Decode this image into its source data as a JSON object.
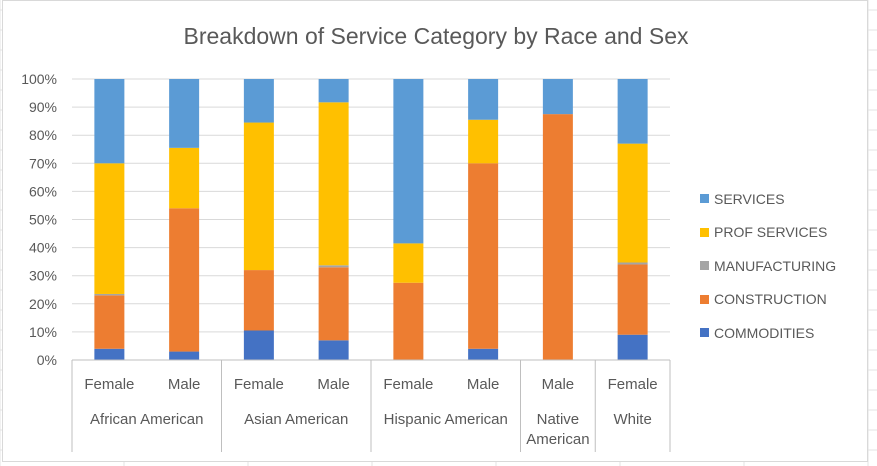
{
  "chart_data": {
    "type": "bar",
    "stacked": true,
    "percent": true,
    "title": "Breakdown of Service Category by Race and Sex",
    "ylim": [
      0,
      100
    ],
    "y_ticks": [
      "0%",
      "10%",
      "20%",
      "30%",
      "40%",
      "50%",
      "60%",
      "70%",
      "80%",
      "90%",
      "100%"
    ],
    "categories": [
      {
        "label": "Female",
        "group": "African American"
      },
      {
        "label": "Male",
        "group": "African American"
      },
      {
        "label": "Female",
        "group": "Asian American"
      },
      {
        "label": "Male",
        "group": "Asian American"
      },
      {
        "label": "Female",
        "group": "Hispanic American"
      },
      {
        "label": "Male",
        "group": "Hispanic American"
      },
      {
        "label": "Male",
        "group": "Native American"
      },
      {
        "label": "Female",
        "group": "White"
      }
    ],
    "groups": [
      {
        "name": "African American",
        "lines": [
          "African American"
        ],
        "count": 2
      },
      {
        "name": "Asian American",
        "lines": [
          "Asian American"
        ],
        "count": 2
      },
      {
        "name": "Hispanic American",
        "lines": [
          "Hispanic American"
        ],
        "count": 2
      },
      {
        "name": "Native American",
        "lines": [
          "Native",
          "American"
        ],
        "count": 1
      },
      {
        "name": "White",
        "lines": [
          "White"
        ],
        "count": 1
      }
    ],
    "series": [
      {
        "name": "COMMODITIES",
        "color": "#4472C4",
        "values": [
          4,
          3,
          10.5,
          7,
          0,
          4,
          0,
          9
        ]
      },
      {
        "name": "CONSTRUCTION",
        "color": "#ED7D31",
        "values": [
          19,
          51,
          21.5,
          26,
          27.5,
          66,
          87.5,
          25
        ]
      },
      {
        "name": "MANUFACTURING",
        "color": "#A5A5A5",
        "values": [
          0.5,
          0,
          0,
          0.7,
          0,
          0,
          0,
          0.7
        ]
      },
      {
        "name": "PROF SERVICES",
        "color": "#FFC000",
        "values": [
          46.5,
          21.5,
          52.5,
          58,
          14,
          15.5,
          0,
          42.3
        ]
      },
      {
        "name": "SERVICES",
        "color": "#5B9BD5",
        "values": [
          30,
          24.5,
          15.5,
          8.3,
          58.5,
          14.5,
          12.5,
          23
        ]
      }
    ],
    "legend": {
      "position": "right",
      "order": [
        "SERVICES",
        "PROF SERVICES",
        "MANUFACTURING",
        "CONSTRUCTION",
        "COMMODITIES"
      ]
    },
    "grid": true
  }
}
